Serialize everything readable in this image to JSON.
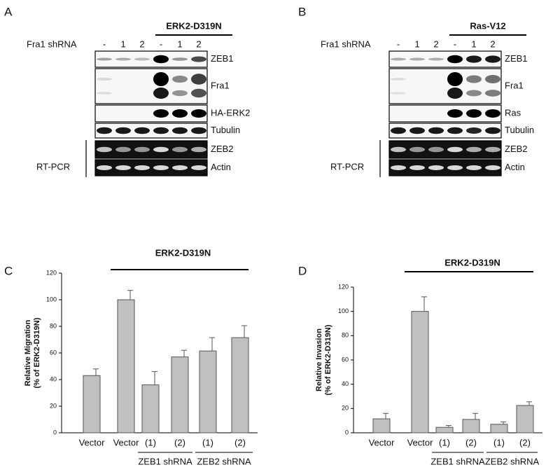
{
  "panels": [
    {
      "label": "A",
      "header": "ERK2-D319N",
      "lane_title": "Fra1 shRNA",
      "lanes": [
        "-",
        "1",
        "2",
        "-",
        "1",
        "2"
      ],
      "rows": [
        "ZEB1",
        "Fra1",
        "HA-ERK2",
        "Tubulin",
        "ZEB2",
        "Actin"
      ],
      "rt_pcr": "RT-PCR"
    },
    {
      "label": "B",
      "header": "Ras-V12",
      "lane_title": "Fra1 shRNA",
      "lanes": [
        "-",
        "1",
        "2",
        "-",
        "1",
        "2"
      ],
      "rows": [
        "ZEB1",
        "Fra1",
        "Ras",
        "Tubulin",
        "ZEB2",
        "Actin"
      ],
      "rt_pcr": "RT-PCR"
    }
  ],
  "chart_data": [
    {
      "type": "bar",
      "panel": "C",
      "annotation": "ERK2-D319N",
      "y_label": [
        "Relative Migration",
        "(% of ERK2-D319N)"
      ],
      "categories": [
        "Vector",
        "Vector",
        "(1)",
        "(2)",
        "(1)",
        "(2)"
      ],
      "groups": [
        "ZEB1 shRNA",
        "ZEB2 shRNA"
      ],
      "values": [
        43,
        100,
        36,
        57,
        61.5,
        71.5
      ],
      "errors": [
        5,
        7,
        10,
        5,
        10,
        9
      ],
      "color": "#c0c0c0",
      "ylim": [
        0,
        120
      ],
      "yticks": [
        0,
        20,
        40,
        60,
        80,
        100,
        120
      ]
    },
    {
      "type": "bar",
      "panel": "D",
      "annotation": "ERK2-D319N",
      "y_label": [
        "Relative Invasion",
        "(% of ERK2-D319N)"
      ],
      "categories": [
        "Vector",
        "Vector",
        "(1)",
        "(2)",
        "(1)",
        "(2)"
      ],
      "groups": [
        "ZEB1 shRNA",
        "ZEB2 shRNA"
      ],
      "values": [
        11.5,
        100,
        4.5,
        11,
        7,
        22.5
      ],
      "errors": [
        4.5,
        12,
        1.5,
        5,
        2,
        3
      ],
      "color": "#c0c0c0",
      "ylim": [
        0,
        120
      ],
      "yticks": [
        0,
        20,
        40,
        60,
        80,
        100,
        120
      ]
    }
  ]
}
